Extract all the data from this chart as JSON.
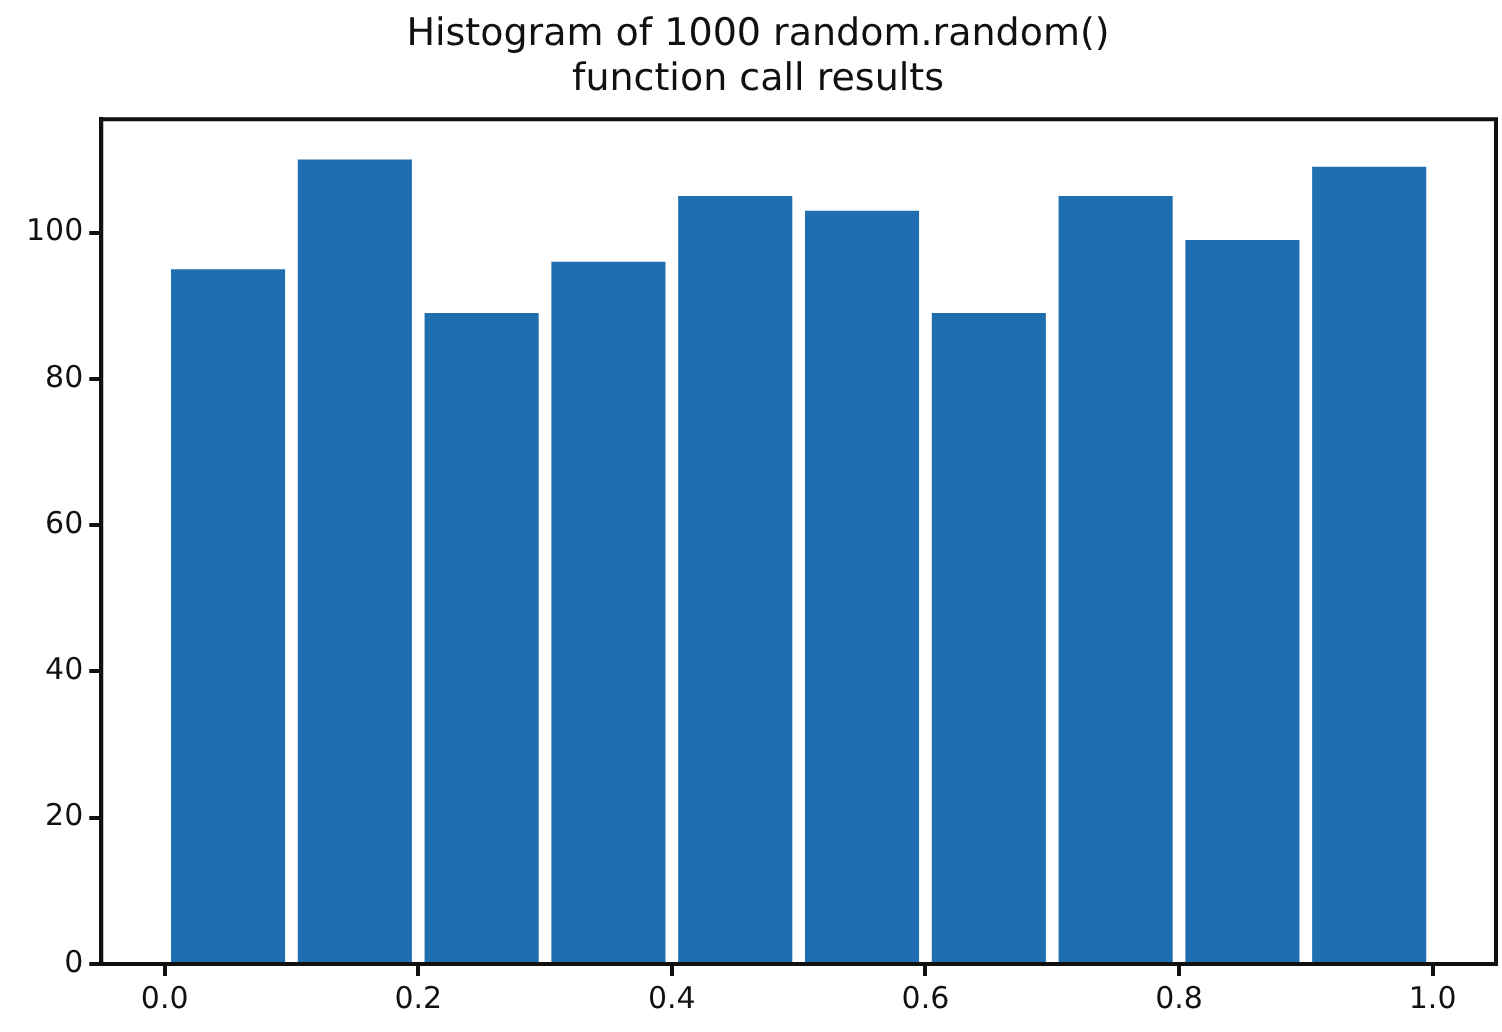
{
  "chart_data": {
    "type": "histogram",
    "title": "Histogram of 1000 random.random()\nfunction call results",
    "bins": [
      0.0,
      0.1,
      0.2,
      0.3,
      0.4,
      0.5,
      0.6,
      0.7,
      0.8,
      0.9,
      1.0
    ],
    "values": [
      95,
      110,
      89,
      96,
      105,
      103,
      89,
      105,
      99,
      109
    ],
    "color": "#1f6fb0",
    "xlim": [
      -0.05,
      1.05
    ],
    "xticks": [
      {
        "value": 0,
        "label": "0.0"
      },
      {
        "value": 0.2,
        "label": "0.2"
      },
      {
        "value": 0.4,
        "label": "0.4"
      },
      {
        "value": 0.6,
        "label": "0.6"
      },
      {
        "value": 0.8,
        "label": "0.8"
      },
      {
        "value": 1,
        "label": "1.0"
      }
    ],
    "ylim": [
      0,
      115.5
    ],
    "yticks": [
      0,
      20,
      40,
      60,
      80,
      100
    ],
    "grid": false
  }
}
